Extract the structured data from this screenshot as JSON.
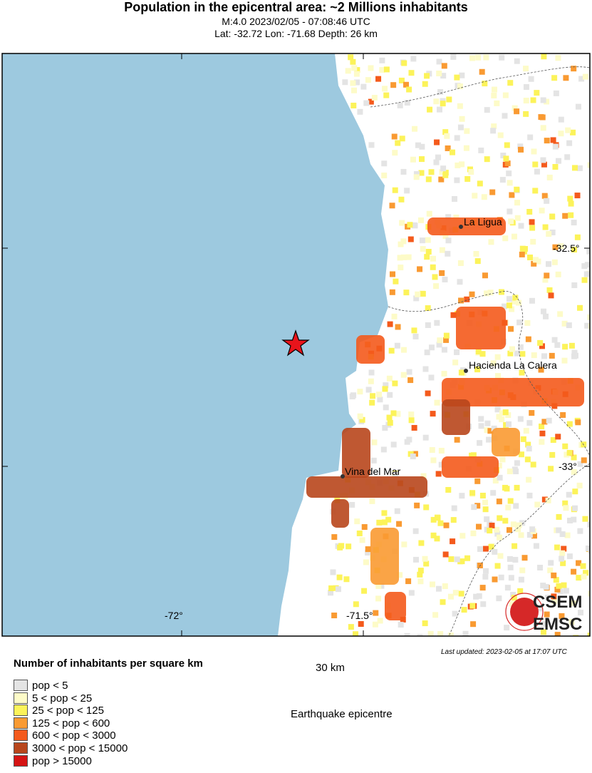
{
  "header": {
    "title": "Population in the epicentral area: ~2 Millions inhabitants",
    "event": "M:4.0 2023/02/05 - 07:08:46 UTC",
    "location": "Lat: -32.72 Lon: -71.68 Depth: 26 km"
  },
  "map": {
    "ocean_color": "#9dc9df",
    "cities": [
      "La Ligua",
      "Hacienda La Calera",
      "Vina del Mar"
    ],
    "lon_ticks": [
      "-72°",
      "-71.5°"
    ],
    "lat_ticks": [
      "-32.5°",
      "-33°"
    ],
    "epicenter_color": "#e8141b",
    "logo": "CSEM EMSC",
    "scale_bar": "30 km"
  },
  "legend": {
    "title": "Number of inhabitants per square km",
    "items": [
      {
        "label": "pop < 5",
        "color": "#e4e4e4"
      },
      {
        "label": "5 < pop < 25",
        "color": "#fdfbc8"
      },
      {
        "label": "25 < pop < 125",
        "color": "#fcf35a"
      },
      {
        "label": "125 < pop < 600",
        "color": "#f99a32"
      },
      {
        "label": "600 < pop < 3000",
        "color": "#f45a1c"
      },
      {
        "label": "3000 < pop < 15000",
        "color": "#b8461c"
      },
      {
        "label": "pop > 15000",
        "color": "#d51414"
      }
    ],
    "epicentre_label": "Earthquake epicentre"
  },
  "footer": {
    "updated": "Last updated: 2023-02-05 at 17:07 UTC"
  }
}
